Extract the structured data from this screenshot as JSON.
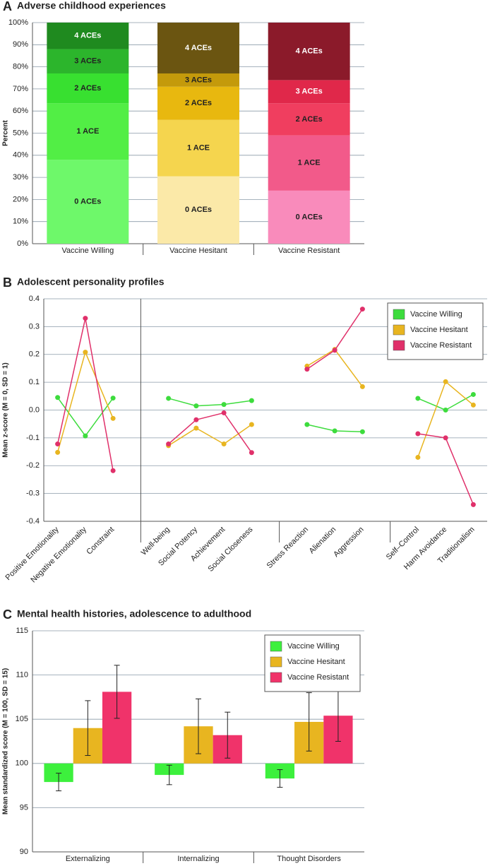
{
  "chart_data": [
    {
      "type": "stacked_bar",
      "panel_label": "A",
      "title": "Adverse childhood experiences",
      "y_label": "Percent",
      "categories": [
        "Vaccine Willing",
        "Vaccine Hesitant",
        "Vaccine Resistant"
      ],
      "series": [
        {
          "name": "0 ACEs",
          "colors": [
            "#6ef86a",
            "#fbe9a8",
            "#f98bbb"
          ],
          "values": [
            38,
            30.5,
            24
          ]
        },
        {
          "name": "1 ACE",
          "colors": [
            "#52ee45",
            "#f5d54e",
            "#f25a8a"
          ],
          "values": [
            25.5,
            25.5,
            25
          ]
        },
        {
          "name": "2 ACEs",
          "colors": [
            "#38e030",
            "#e8b80f",
            "#f03e5f"
          ],
          "values": [
            13.5,
            15,
            14.5
          ]
        },
        {
          "name": "3 ACEs",
          "colors": [
            "#2cb52c",
            "#c49a0b",
            "#e0284a"
          ],
          "values": [
            11,
            6,
            10.5
          ]
        },
        {
          "name": "4 ACEs",
          "colors": [
            "#1f8a1f",
            "#6b5511",
            "#8b1a2a"
          ],
          "values": [
            12,
            23,
            26
          ]
        }
      ],
      "ylim": [
        0,
        100
      ],
      "yticks": [
        {
          "value": 0,
          "label": "0%"
        },
        {
          "value": 10,
          "label": "10%"
        },
        {
          "value": 20,
          "label": "20%"
        },
        {
          "value": 30,
          "label": "30%"
        },
        {
          "value": 40,
          "label": "40%"
        },
        {
          "value": 50,
          "label": "50%"
        },
        {
          "value": 60,
          "label": "60%"
        },
        {
          "value": 70,
          "label": "70%"
        },
        {
          "value": 80,
          "label": "80%"
        },
        {
          "value": 90,
          "label": "90%"
        },
        {
          "value": 100,
          "label": "100%"
        }
      ],
      "grid": true
    },
    {
      "type": "line",
      "panel_label": "B",
      "title": "Adolescent personality profiles",
      "y_label": "Mean z-score (M = 0, SD = 1)",
      "categories": [
        "Positive Emotionality",
        "Negative Emotionality",
        "Constraint",
        null,
        "Well-being",
        "Social Potency",
        "Achievement",
        "Social Closeness",
        null,
        "Stress Reaction",
        "Alienation",
        "Aggression",
        null,
        "Self–Control",
        "Harm Avoidance",
        "Traditionalism"
      ],
      "series": [
        {
          "name": "Vaccine Willing",
          "color": "#3ddc3d",
          "values": [
            0.045,
            -0.093,
            0.043,
            null,
            0.042,
            0.015,
            0.02,
            0.034,
            null,
            -0.052,
            -0.075,
            -0.078,
            null,
            0.042,
            0.0,
            0.056
          ]
        },
        {
          "name": "Vaccine Hesitant",
          "color": "#e8b520",
          "values": [
            -0.152,
            0.208,
            -0.03,
            null,
            -0.128,
            -0.065,
            -0.122,
            -0.052,
            null,
            0.158,
            0.218,
            0.084,
            null,
            -0.17,
            0.102,
            0.018
          ]
        },
        {
          "name": "Vaccine Resistant",
          "color": "#e0306a",
          "values": [
            -0.122,
            0.33,
            -0.218,
            null,
            -0.122,
            -0.035,
            -0.01,
            -0.153,
            null,
            0.147,
            0.215,
            0.363,
            null,
            -0.085,
            -0.1,
            -0.34
          ]
        }
      ],
      "ylim": [
        -0.4,
        0.4
      ],
      "yticks": [
        -0.4,
        -0.3,
        -0.2,
        -0.1,
        {
          "value": 0,
          "label": "0.0"
        },
        0.1,
        0.2,
        0.3,
        0.4
      ],
      "grid": true,
      "legend": "top-right"
    },
    {
      "type": "bar",
      "panel_label": "C",
      "title": "Mental health histories, adolescence to adulthood",
      "y_label": "Mean standardized score (M = 100, SD = 15)",
      "categories": [
        "Externalizing",
        "Internalizing",
        "Thought Disorders"
      ],
      "bar_base": 100,
      "series": [
        {
          "name": "Vaccine Willing",
          "color": "#3df03d",
          "values": [
            97.9,
            98.7,
            98.3
          ],
          "errors": [
            1.0,
            1.1,
            1.0
          ]
        },
        {
          "name": "Vaccine Hesitant",
          "color": "#e8b520",
          "values": [
            104.0,
            104.2,
            104.7
          ],
          "errors": [
            3.1,
            3.1,
            3.3
          ]
        },
        {
          "name": "Vaccine Resistant",
          "color": "#f0336a",
          "values": [
            108.1,
            103.2,
            105.4
          ],
          "errors": [
            3.0,
            2.6,
            2.9
          ]
        }
      ],
      "ylim": [
        90,
        115
      ],
      "yticks": [
        90,
        95,
        100,
        105,
        110,
        115
      ],
      "grid": true,
      "legend": "top-right"
    }
  ]
}
